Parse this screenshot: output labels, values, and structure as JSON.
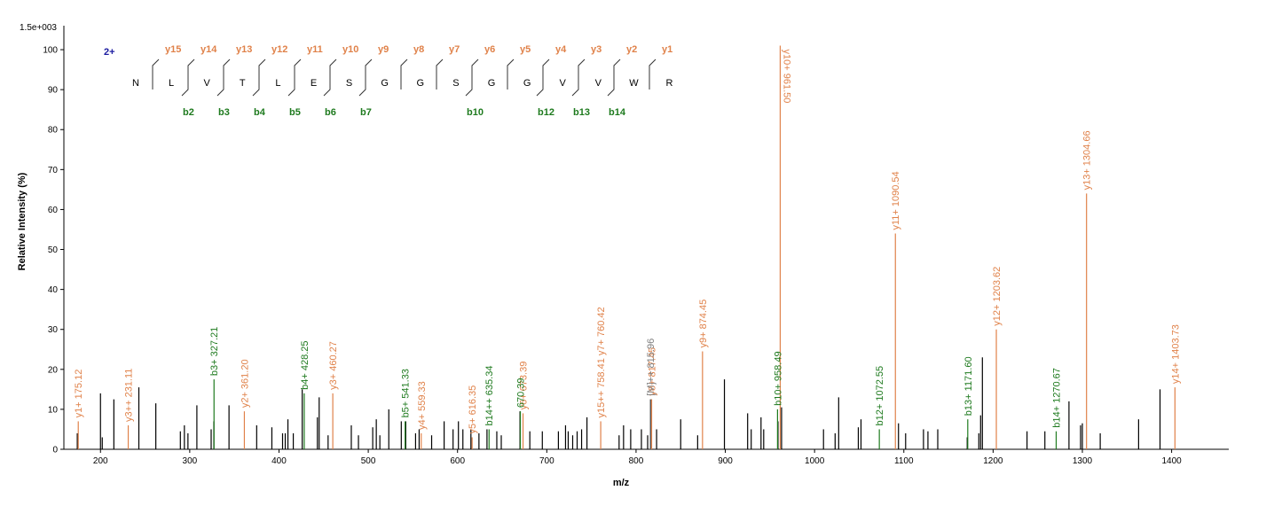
{
  "chart_data": {
    "type": "stem",
    "y_axis_label": "Relative   Intensity (%)",
    "x_axis_label": "m/z",
    "scale_label": "1.5e+003",
    "xlim": [
      159,
      1464
    ],
    "ylim": [
      0,
      106
    ],
    "xticks": [
      200,
      300,
      400,
      500,
      600,
      700,
      800,
      900,
      1000,
      1100,
      1200,
      1300,
      1400
    ],
    "yticks": [
      0,
      10,
      20,
      30,
      40,
      50,
      60,
      70,
      80,
      90,
      100
    ],
    "series": [
      {
        "color": "#000000",
        "x": [
          174,
          200,
          202,
          215,
          243,
          262,
          289.5,
          294,
          298,
          308,
          324,
          327,
          344,
          375,
          392,
          404,
          407,
          410,
          416,
          426,
          443,
          445,
          455,
          481,
          489,
          505,
          509,
          513,
          523,
          537,
          542,
          553,
          557,
          571,
          585,
          595,
          601,
          606,
          615,
          624,
          633,
          644,
          649,
          670,
          681,
          695,
          713,
          721,
          724,
          729,
          734,
          739,
          745,
          781,
          786,
          794,
          806,
          813,
          817,
          823,
          850,
          869,
          899,
          925,
          929,
          940,
          943,
          959,
          963,
          1010,
          1023,
          1027,
          1049,
          1052,
          1094,
          1102,
          1122,
          1127,
          1138,
          1171,
          1184,
          1186,
          1188,
          1238,
          1258,
          1285,
          1298,
          1300,
          1320,
          1363,
          1387
        ],
        "values": [
          4,
          14,
          3,
          12.5,
          15.5,
          11.5,
          4.5,
          6,
          4,
          11,
          5,
          7,
          11,
          6,
          5.5,
          4,
          4,
          7.5,
          4,
          15,
          8,
          13,
          3.5,
          6,
          3.5,
          5.5,
          7.5,
          3.5,
          10,
          7,
          7,
          4,
          5,
          3.5,
          7,
          5,
          7,
          5,
          5,
          4,
          5,
          4.5,
          3.5,
          9.5,
          4.5,
          4.5,
          4.5,
          6,
          4.5,
          3.5,
          4.5,
          5,
          8,
          3.5,
          6,
          5,
          5,
          3.5,
          12.5,
          5,
          7.5,
          3.5,
          17.5,
          9,
          5,
          8,
          5,
          7,
          10.5,
          5,
          4,
          13,
          5.5,
          7.5,
          6.5,
          4,
          5,
          4.5,
          5,
          3,
          4,
          8.5,
          23,
          4.5,
          4.5,
          12,
          6,
          6.5,
          4,
          7.5,
          15
        ]
      },
      {
        "color": "#e0824a",
        "x": [
          175.12,
          231.11,
          361.2,
          460.27,
          559.33,
          616.35,
          673.39,
          760.42,
          817.45,
          874.45,
          961.5,
          1090.54,
          1203.62,
          1304.66,
          1403.73
        ],
        "values": [
          7,
          6,
          9.5,
          14,
          4,
          3,
          9,
          7,
          12.5,
          24.5,
          101,
          54,
          30,
          64,
          15.5
        ],
        "labels": [
          "y1+ 175.12",
          "y3++ 231.11",
          "y2+ 361.20",
          "y3+ 460.27",
          "y4+ 559.33",
          "y5+ 616.35",
          "y6+ 673.39",
          "y15++ 758.41 y7+ 760.42",
          "y8+ 817.45",
          "y9+ 874.45",
          "y10+ 961.50",
          "y11+ 1090.54",
          "y12+ 1203.62",
          "y13+ 1304.66",
          "y14+ 1403.73"
        ]
      },
      {
        "color": "#1e7a1e",
        "x": [
          327.21,
          428.25,
          541.33,
          635.34,
          670.39,
          958.49,
          1072.55,
          1171.6,
          1270.67
        ],
        "values": [
          17.5,
          14,
          7,
          5,
          9.5,
          10,
          5,
          7.5,
          4.5
        ],
        "labels": [
          "b3+ 327.21",
          "b4+ 428.25",
          "b5+ 541.33",
          "b14++ 635.34",
          "670.39",
          "b10+ 958.49",
          "b12+ 1072.55",
          "b13+ 1171.60",
          "b14+ 1270.67"
        ]
      },
      {
        "color": "#808080",
        "x": [
          815.96
        ],
        "values": [
          12.5
        ],
        "labels": [
          "[M]++ 815.96"
        ]
      }
    ]
  },
  "peptide": {
    "charge": "2+",
    "residues": [
      "N",
      "L",
      "V",
      "T",
      "L",
      "E",
      "S",
      "G",
      "G",
      "S",
      "G",
      "G",
      "V",
      "V",
      "W",
      "R"
    ],
    "y_ions": [
      [
        "y",
        "15"
      ],
      [
        "y",
        "14"
      ],
      [
        "y",
        "13"
      ],
      [
        "y",
        "12"
      ],
      [
        "y",
        "11"
      ],
      [
        "y",
        "10"
      ],
      [
        "y",
        "9"
      ],
      [
        "y",
        "8"
      ],
      [
        "y",
        "7"
      ],
      [
        "y",
        "6"
      ],
      [
        "y",
        "5"
      ],
      [
        "y",
        "4"
      ],
      [
        "y",
        "3"
      ],
      [
        "y",
        "2"
      ],
      [
        "y",
        "1"
      ]
    ],
    "b_ions": [
      [
        "b",
        "2"
      ],
      [
        "b",
        "3"
      ],
      [
        "b",
        "4"
      ],
      [
        "b",
        "5"
      ],
      [
        "b",
        "6"
      ],
      [
        "b",
        "7"
      ],
      [
        "b",
        "10"
      ],
      [
        "b",
        "12"
      ],
      [
        "b",
        "13"
      ],
      [
        "b",
        "14"
      ]
    ]
  }
}
